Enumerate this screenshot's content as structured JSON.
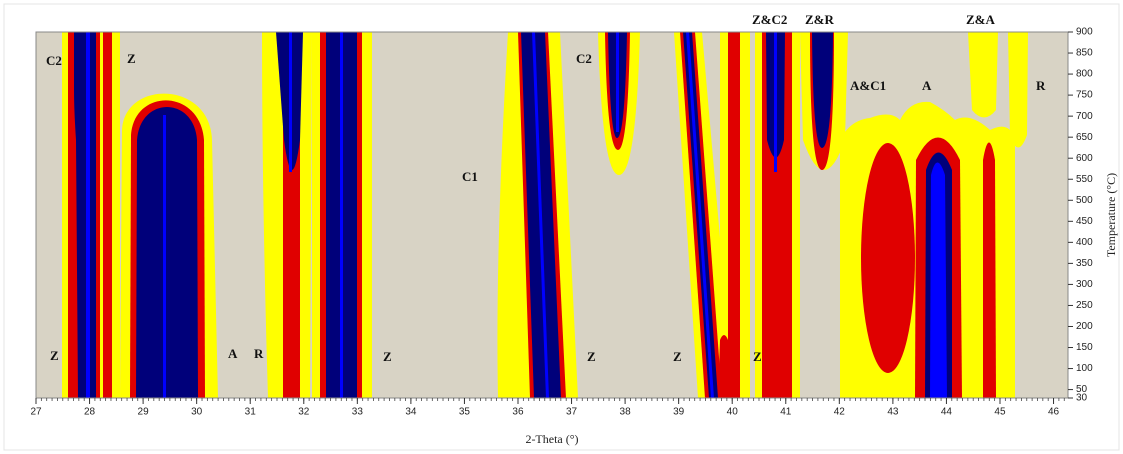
{
  "chart_data": {
    "type": "contour",
    "x_label": "2-Theta (°)",
    "y_label": "Temperature (°C)",
    "xlim": [
      27,
      46.27
    ],
    "ylim": [
      30,
      900
    ],
    "xticks": [
      27,
      28,
      29,
      30,
      31,
      32,
      33,
      34,
      35,
      36,
      37,
      38,
      39,
      40,
      41,
      42,
      43,
      44,
      45,
      46
    ],
    "yticks": [
      30,
      50,
      100,
      150,
      200,
      250,
      300,
      350,
      400,
      450,
      500,
      550,
      600,
      650,
      700,
      750,
      800,
      850,
      900
    ],
    "annotations": [
      "C2",
      "Z",
      "C2",
      "Z&C2",
      "Z&R",
      "Z&A",
      "A&C1",
      "A",
      "R",
      "C1",
      "Z",
      "A",
      "R",
      "Z",
      "Z",
      "Z",
      "Z"
    ]
  }
}
